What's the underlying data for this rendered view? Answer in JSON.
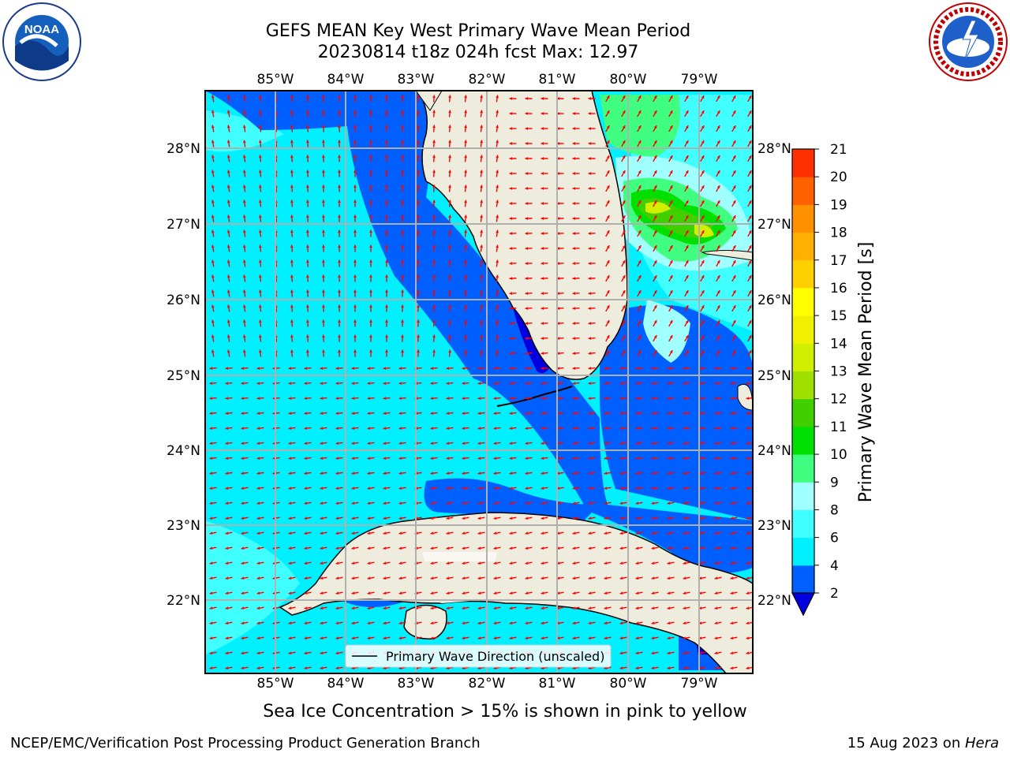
{
  "header": {
    "title_line1": "GEFS MEAN Key West Primary Wave Mean Period",
    "title_line2": "20230814 t18z 024h fcst   Max: 12.97"
  },
  "logos": {
    "left": "noaa-logo",
    "right": "nws-logo"
  },
  "map": {
    "lon_labels": [
      "85°W",
      "84°W",
      "83°W",
      "82°W",
      "81°W",
      "80°W",
      "79°W"
    ],
    "lat_labels": [
      "28°N",
      "27°N",
      "26°N",
      "25°N",
      "24°N",
      "23°N",
      "22°N"
    ],
    "legend_label": "Primary Wave Direction (unscaled)",
    "arrow_color": "#ff0000"
  },
  "colorbar": {
    "label": "Primary Wave Mean Period [s]",
    "ticks": [
      "2",
      "4",
      "6",
      "8",
      "9",
      "10",
      "11",
      "12",
      "13",
      "14",
      "15",
      "16",
      "17",
      "18",
      "19",
      "20",
      "21"
    ],
    "colors": [
      "#0060ff",
      "#00f0ff",
      "#40ffff",
      "#a0ffff",
      "#40ff80",
      "#00e000",
      "#40d000",
      "#a0e000",
      "#d0f000",
      "#f0f000",
      "#ffff00",
      "#ffd000",
      "#ffb000",
      "#ff9000",
      "#ff6000",
      "#ff3000",
      "#ff0000"
    ],
    "under_color": "#0000e0"
  },
  "notes": {
    "sea_ice": "Sea Ice Concentration > 15% is shown in pink to yellow"
  },
  "footer": {
    "left": "NCEP/EMC/Verification Post Processing Product Generation Branch",
    "date": "15 Aug 2023 on ",
    "machine": "Hera"
  }
}
